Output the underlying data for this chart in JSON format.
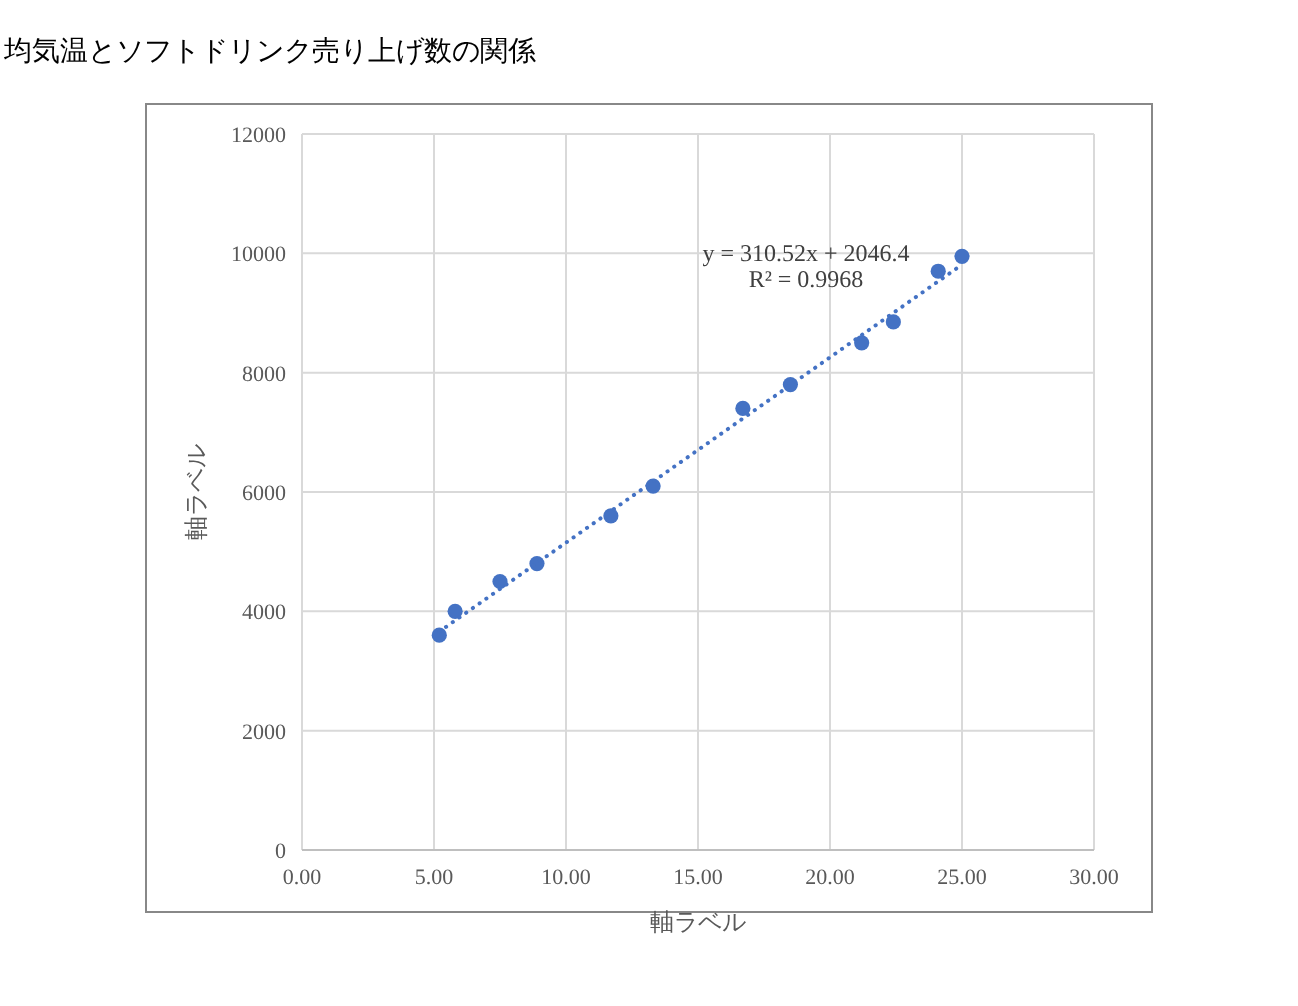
{
  "chart_data": {
    "type": "scatter",
    "title": "均気温とソフトドリンク売り上げ数の関係",
    "xlabel": "軸ラベル",
    "ylabel": "軸ラベル",
    "xlim": [
      0,
      30
    ],
    "ylim": [
      0,
      12000
    ],
    "xticks": [
      {
        "value": 0,
        "label": "0.00"
      },
      {
        "value": 5,
        "label": "5.00"
      },
      {
        "value": 10,
        "label": "10.00"
      },
      {
        "value": 15,
        "label": "15.00"
      },
      {
        "value": 20,
        "label": "20.00"
      },
      {
        "value": 25,
        "label": "25.00"
      },
      {
        "value": 30,
        "label": "30.00"
      }
    ],
    "yticks": [
      0,
      2000,
      4000,
      6000,
      8000,
      10000,
      12000
    ],
    "grid": true,
    "marker": "circle",
    "series": [
      {
        "type": "scatter",
        "color": "#4472c4",
        "x": [
          5.2,
          5.8,
          7.5,
          8.9,
          11.7,
          13.3,
          16.7,
          18.5,
          21.2,
          22.4,
          24.1,
          25.0
        ],
        "values": [
          3600,
          4000,
          4500,
          4800,
          5600,
          6100,
          7400,
          7800,
          8500,
          8850,
          9700,
          9950
        ]
      },
      {
        "type": "line",
        "color": "#4472c4",
        "line_style": "dotted",
        "marker": "none",
        "x": [
          5.2,
          25.0
        ],
        "values": [
          3660,
          9810
        ]
      }
    ],
    "annotations": [
      "y = 310.52x + 2046.4",
      "R² = 0.9968"
    ]
  }
}
